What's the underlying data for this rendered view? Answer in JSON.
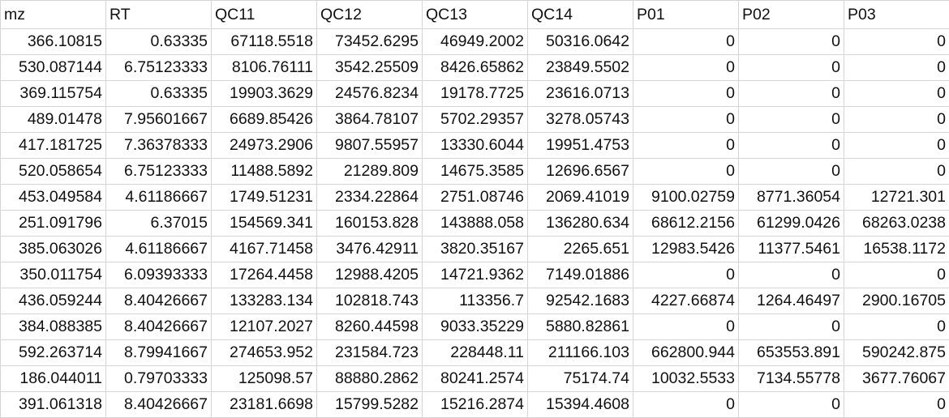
{
  "sheet": {
    "headers": [
      "mz",
      "RT",
      "QC11",
      "QC12",
      "QC13",
      "QC14",
      "P01",
      "P02",
      "P03"
    ],
    "rows": [
      [
        "366.10815",
        "0.63335",
        "67118.5518",
        "73452.6295",
        "46949.2002",
        "50316.0642",
        "0",
        "0",
        "0"
      ],
      [
        "530.087144",
        "6.75123333",
        "8106.76111",
        "3542.25509",
        "8426.65862",
        "23849.5502",
        "0",
        "0",
        "0"
      ],
      [
        "369.115754",
        "0.63335",
        "19903.3629",
        "24576.8234",
        "19178.7725",
        "23616.0713",
        "0",
        "0",
        "0"
      ],
      [
        "489.01478",
        "7.95601667",
        "6689.85426",
        "3864.78107",
        "5702.29357",
        "3278.05743",
        "0",
        "0",
        "0"
      ],
      [
        "417.181725",
        "7.36378333",
        "24973.2906",
        "9807.55957",
        "13330.6044",
        "19951.4753",
        "0",
        "0",
        "0"
      ],
      [
        "520.058654",
        "6.75123333",
        "11488.5892",
        "21289.809",
        "14675.3585",
        "12696.6567",
        "0",
        "0",
        "0"
      ],
      [
        "453.049584",
        "4.61186667",
        "1749.51231",
        "2334.22864",
        "2751.08746",
        "2069.41019",
        "9100.02759",
        "8771.36054",
        "12721.301"
      ],
      [
        "251.091796",
        "6.37015",
        "154569.341",
        "160153.828",
        "143888.058",
        "136280.634",
        "68612.2156",
        "61299.0426",
        "68263.0238"
      ],
      [
        "385.063026",
        "4.61186667",
        "4167.71458",
        "3476.42911",
        "3820.35167",
        "2265.651",
        "12983.5426",
        "11377.5461",
        "16538.1172"
      ],
      [
        "350.011754",
        "6.09393333",
        "17264.4458",
        "12988.4205",
        "14721.9362",
        "7149.01886",
        "0",
        "0",
        "0"
      ],
      [
        "436.059244",
        "8.40426667",
        "133283.134",
        "102818.743",
        "113356.7",
        "92542.1683",
        "4227.66874",
        "1264.46497",
        "2900.16705"
      ],
      [
        "384.088385",
        "8.40426667",
        "12107.2027",
        "8260.44598",
        "9033.35229",
        "5880.82861",
        "0",
        "0",
        "0"
      ],
      [
        "592.263714",
        "8.79941667",
        "274653.952",
        "231584.723",
        "228448.11",
        "211166.103",
        "662800.944",
        "653553.891",
        "590242.875"
      ],
      [
        "186.044011",
        "0.79703333",
        "125098.57",
        "88880.2862",
        "80241.2574",
        "75174.74",
        "10032.5533",
        "7134.55778",
        "3677.76067"
      ],
      [
        "391.061318",
        "8.40426667",
        "23181.6698",
        "15799.5282",
        "15216.2874",
        "15394.4608",
        "0",
        "0",
        "0"
      ]
    ]
  }
}
